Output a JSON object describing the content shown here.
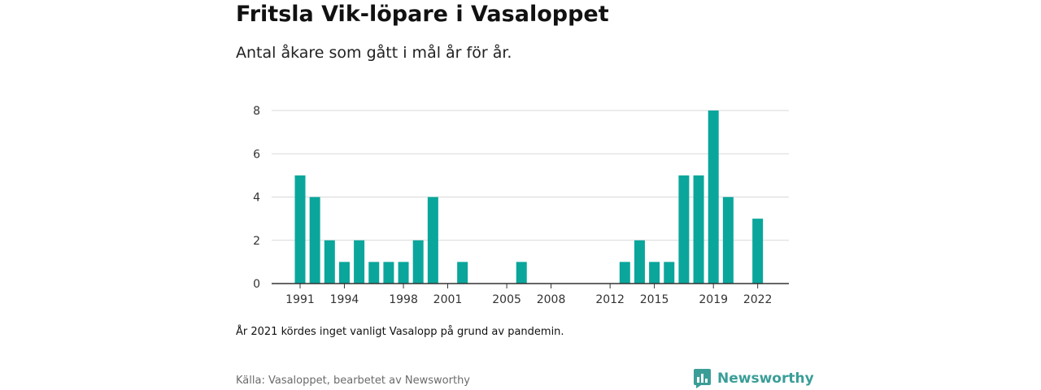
{
  "title": "Fritsla Vik-löpare i Vasaloppet",
  "subtitle": "Antal åkare som gått i mål år för år.",
  "note": "År 2021 kördes inget vanligt Vasalopp på grund av pandemin.",
  "source": "Källa: Vasaloppet, bearbetet av Newsworthy",
  "brand": "Newsworthy",
  "colors": {
    "bar": "#0aa69c",
    "brand": "#3a9e97",
    "grid": "#d9d9d9",
    "axis": "#333333"
  },
  "chart_data": {
    "type": "bar",
    "x": [
      1991,
      1992,
      1993,
      1994,
      1995,
      1996,
      1997,
      1998,
      1999,
      2000,
      2001,
      2002,
      2003,
      2004,
      2005,
      2006,
      2007,
      2008,
      2009,
      2010,
      2011,
      2012,
      2013,
      2014,
      2015,
      2016,
      2017,
      2018,
      2019,
      2020,
      2021,
      2022
    ],
    "values": [
      5,
      4,
      2,
      1,
      2,
      1,
      1,
      1,
      2,
      4,
      0,
      1,
      0,
      0,
      0,
      1,
      0,
      0,
      0,
      0,
      0,
      0,
      1,
      2,
      1,
      1,
      5,
      5,
      8,
      4,
      0,
      3
    ],
    "x_ticks": [
      1991,
      1994,
      1998,
      2001,
      2005,
      2008,
      2012,
      2015,
      2019,
      2022
    ],
    "y_ticks": [
      0,
      2,
      4,
      6,
      8
    ],
    "ylim": [
      0,
      8
    ],
    "xlabel": "",
    "ylabel": "",
    "grid": true
  }
}
